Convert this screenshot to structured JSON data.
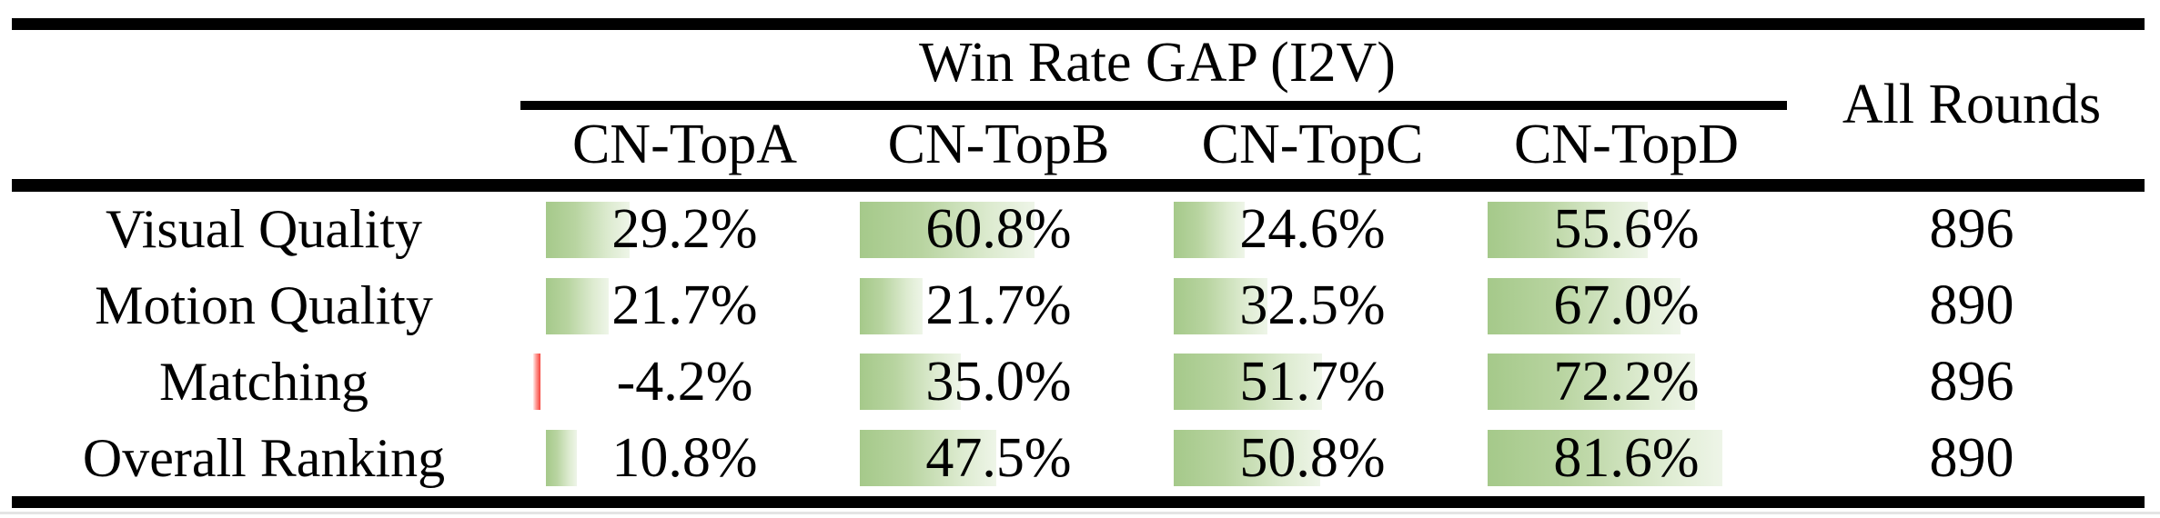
{
  "table": {
    "title_group": "Win Rate GAP (I2V)",
    "col_all_rounds": "All Rounds",
    "columns": [
      "CN-TopA",
      "CN-TopB",
      "CN-TopC",
      "CN-TopD"
    ],
    "rows": [
      {
        "label": "Visual Quality",
        "cells": [
          {
            "text": "29.2%",
            "value": 29.2
          },
          {
            "text": "60.8%",
            "value": 60.8
          },
          {
            "text": "24.6%",
            "value": 24.6
          },
          {
            "text": "55.6%",
            "value": 55.6
          }
        ],
        "all_rounds": "896"
      },
      {
        "label": "Motion Quality",
        "cells": [
          {
            "text": "21.7%",
            "value": 21.7
          },
          {
            "text": "21.7%",
            "value": 21.7
          },
          {
            "text": "32.5%",
            "value": 32.5
          },
          {
            "text": "67.0%",
            "value": 67.0
          }
        ],
        "all_rounds": "890"
      },
      {
        "label": "Matching",
        "cells": [
          {
            "text": "-4.2%",
            "value": -4.2
          },
          {
            "text": "35.0%",
            "value": 35.0
          },
          {
            "text": "51.7%",
            "value": 51.7
          },
          {
            "text": "72.2%",
            "value": 72.2
          }
        ],
        "all_rounds": "896"
      },
      {
        "label": "Overall Ranking",
        "cells": [
          {
            "text": "10.8%",
            "value": 10.8
          },
          {
            "text": "47.5%",
            "value": 47.5
          },
          {
            "text": "50.8%",
            "value": 50.8
          },
          {
            "text": "81.6%",
            "value": 81.6
          }
        ],
        "all_rounds": "890"
      }
    ],
    "colors": {
      "bar_positive_start": "#a5c98a",
      "bar_positive_end": "#eef5e8",
      "bar_negative": "#f5423b",
      "rule": "#000000",
      "text": "#000000"
    }
  }
}
